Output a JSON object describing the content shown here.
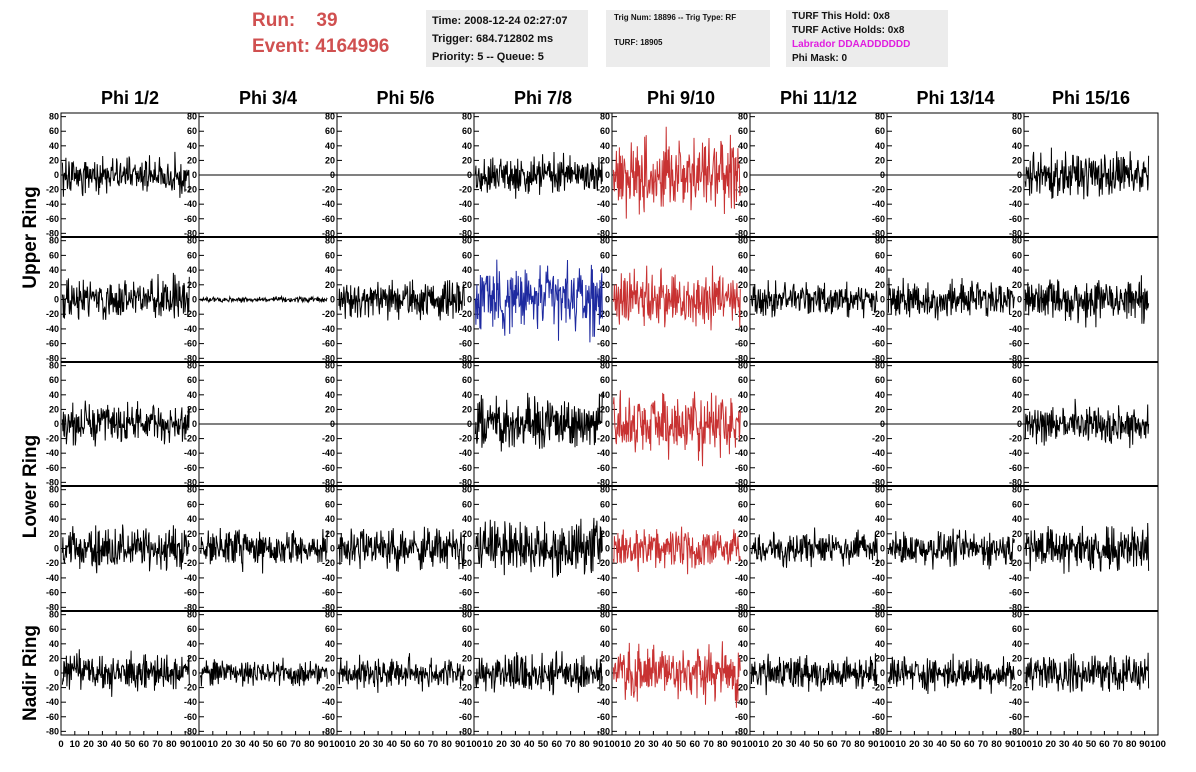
{
  "header": {
    "run_label": "Run:",
    "run_value": "39",
    "event_label": "Event:",
    "event_value": "4164996",
    "time": "Time: 2008-12-24 02:27:07",
    "trigger": "Trigger: 684.712802 ms",
    "priority": "Priority: 5 -- Queue: 5",
    "trig_num": "Trig Num: 18896 -- Trig Type: RF",
    "turf": "TURF: 18905",
    "turf_this_hold": "TURF This Hold: 0x8",
    "turf_active_holds": "TURF Active Holds: 0x8",
    "labrador": "Labrador DDAADDDDDD",
    "phi_mask": "Phi Mask: 0"
  },
  "colors": {
    "run_text": "#d05050",
    "labrador_text": "#e01ee0",
    "trace_default": "#000000",
    "trace_red": "#c83232",
    "trace_blue": "#1e2aa0",
    "panel_bg": "#ececec"
  },
  "chart_data": {
    "type": "line",
    "columns": [
      "Phi 1/2",
      "Phi 3/4",
      "Phi 5/6",
      "Phi 7/8",
      "Phi 9/10",
      "Phi 11/12",
      "Phi 13/14",
      "Phi 15/16"
    ],
    "ring_labels": [
      {
        "label": "Upper Ring",
        "rows": [
          0,
          1
        ]
      },
      {
        "label": "Lower Ring",
        "rows": [
          2,
          3
        ]
      },
      {
        "label": "Nadir Ring",
        "rows": [
          4
        ]
      }
    ],
    "ylim": [
      -85,
      85
    ],
    "yticks": [
      -80,
      -60,
      -40,
      -20,
      0,
      20,
      40,
      60,
      80
    ],
    "xlim": [
      0,
      100
    ],
    "xticks": [
      0,
      10,
      20,
      30,
      40,
      50,
      60,
      70,
      80,
      90,
      100
    ],
    "x_samples": 256,
    "grid": false,
    "rows": [
      [
        {
          "state": "noise",
          "amp": 15,
          "color": "black",
          "seed": 11
        },
        {
          "state": "flat",
          "color": "black",
          "seed": 12
        },
        {
          "state": "flat",
          "color": "black",
          "seed": 13
        },
        {
          "state": "noise",
          "amp": 16,
          "color": "black",
          "seed": 14
        },
        {
          "state": "noise",
          "amp": 30,
          "color": "red",
          "seed": 15
        },
        {
          "state": "flat",
          "color": "black",
          "seed": 16
        },
        {
          "state": "flat",
          "color": "black",
          "seed": 17
        },
        {
          "state": "noise",
          "amp": 18,
          "color": "black",
          "seed": 18
        }
      ],
      [
        {
          "state": "noise",
          "amp": 17,
          "color": "black",
          "seed": 21
        },
        {
          "state": "noise",
          "amp": 2,
          "color": "black",
          "seed": 22
        },
        {
          "state": "noise",
          "amp": 16,
          "color": "black",
          "seed": 23
        },
        {
          "state": "noise",
          "amp": 28,
          "color": "blue",
          "seed": 24
        },
        {
          "state": "noise",
          "amp": 22,
          "color": "red",
          "seed": 25
        },
        {
          "state": "noise",
          "amp": 14,
          "color": "black",
          "seed": 26
        },
        {
          "state": "noise",
          "amp": 15,
          "color": "black",
          "seed": 27
        },
        {
          "state": "noise",
          "amp": 18,
          "color": "black",
          "seed": 28
        }
      ],
      [
        {
          "state": "noise",
          "amp": 16,
          "color": "black",
          "seed": 31
        },
        {
          "state": "flat",
          "color": "black",
          "seed": 32
        },
        {
          "state": "flat",
          "color": "black",
          "seed": 33
        },
        {
          "state": "noise",
          "amp": 20,
          "color": "black",
          "seed": 34
        },
        {
          "state": "noise",
          "amp": 25,
          "color": "red",
          "seed": 35
        },
        {
          "state": "flat",
          "color": "black",
          "seed": 36
        },
        {
          "state": "flat",
          "color": "black",
          "seed": 37
        },
        {
          "state": "noise",
          "amp": 15,
          "color": "black",
          "seed": 38
        }
      ],
      [
        {
          "state": "noise",
          "amp": 17,
          "color": "black",
          "seed": 41
        },
        {
          "state": "noise",
          "amp": 15,
          "color": "black",
          "seed": 42
        },
        {
          "state": "noise",
          "amp": 17,
          "color": "black",
          "seed": 43
        },
        {
          "state": "noise",
          "amp": 22,
          "color": "black",
          "seed": 44
        },
        {
          "state": "noise",
          "amp": 16,
          "color": "red",
          "seed": 45
        },
        {
          "state": "noise",
          "amp": 13,
          "color": "black",
          "seed": 46
        },
        {
          "state": "noise",
          "amp": 14,
          "color": "black",
          "seed": 47
        },
        {
          "state": "noise",
          "amp": 18,
          "color": "black",
          "seed": 48
        }
      ],
      [
        {
          "state": "noise",
          "amp": 15,
          "color": "black",
          "seed": 51
        },
        {
          "state": "noise",
          "amp": 11,
          "color": "black",
          "seed": 52
        },
        {
          "state": "noise",
          "amp": 13,
          "color": "black",
          "seed": 53
        },
        {
          "state": "noise",
          "amp": 17,
          "color": "black",
          "seed": 54
        },
        {
          "state": "noise",
          "amp": 22,
          "color": "red",
          "seed": 55
        },
        {
          "state": "noise",
          "amp": 14,
          "color": "black",
          "seed": 56
        },
        {
          "state": "noise",
          "amp": 14,
          "color": "black",
          "seed": 57
        },
        {
          "state": "noise",
          "amp": 15,
          "color": "black",
          "seed": 58
        }
      ]
    ]
  }
}
